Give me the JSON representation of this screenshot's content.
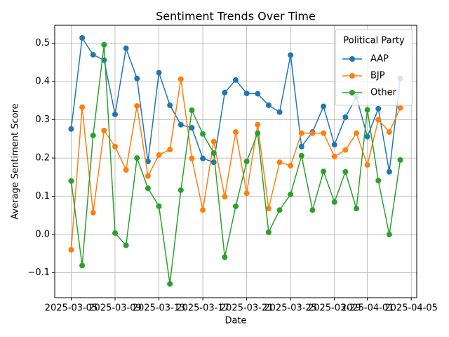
{
  "chart_data": {
    "type": "line",
    "title": "Sentiment Trends Over Time",
    "xlabel": "Date",
    "ylabel": "Average Sentiment Score",
    "x": [
      "2025-03-05",
      "2025-03-06",
      "2025-03-07",
      "2025-03-08",
      "2025-03-09",
      "2025-03-10",
      "2025-03-11",
      "2025-03-12",
      "2025-03-13",
      "2025-03-14",
      "2025-03-15",
      "2025-03-16",
      "2025-03-17",
      "2025-03-18",
      "2025-03-19",
      "2025-03-20",
      "2025-03-21",
      "2025-03-22",
      "2025-03-23",
      "2025-03-24",
      "2025-03-25",
      "2025-03-26",
      "2025-03-27",
      "2025-03-28",
      "2025-03-29",
      "2025-03-30",
      "2025-03-31",
      "2025-04-01",
      "2025-04-02",
      "2025-04-03",
      "2025-04-04"
    ],
    "series": [
      {
        "name": "AAP",
        "color": "#1f77b4",
        "values": [
          0.276,
          0.514,
          0.47,
          0.456,
          0.314,
          0.487,
          0.408,
          0.191,
          0.423,
          0.338,
          0.287,
          0.279,
          0.199,
          0.189,
          0.371,
          0.404,
          0.369,
          0.368,
          0.338,
          0.32,
          0.469,
          0.23,
          0.268,
          0.335,
          0.235,
          0.307,
          0.36,
          0.256,
          0.329,
          0.164,
          0.408
        ]
      },
      {
        "name": "BJP",
        "color": "#ff7f0e",
        "values": [
          -0.04,
          0.333,
          0.057,
          0.272,
          0.23,
          0.169,
          0.336,
          0.153,
          0.208,
          0.222,
          0.406,
          0.199,
          0.064,
          0.243,
          0.099,
          0.268,
          0.108,
          0.287,
          0.068,
          0.189,
          0.18,
          0.265,
          0.265,
          0.265,
          0.204,
          0.221,
          0.265,
          0.182,
          0.3,
          0.268,
          0.331
        ]
      },
      {
        "name": "Other",
        "color": "#2ca02c",
        "values": [
          0.14,
          -0.081,
          0.259,
          0.496,
          0.004,
          -0.028,
          0.2,
          0.121,
          0.074,
          -0.129,
          0.116,
          0.325,
          0.263,
          0.213,
          -0.059,
          0.074,
          0.191,
          0.265,
          0.006,
          0.064,
          0.105,
          0.206,
          0.064,
          0.165,
          0.085,
          0.164,
          0.068,
          0.326,
          0.141,
          0.0,
          0.195
        ]
      }
    ],
    "xlim": [
      "2025-03-03T12:00",
      "2025-04-05T12:00"
    ],
    "xticks": [
      "2025-03-05",
      "2025-03-09",
      "2025-03-13",
      "2025-03-17",
      "2025-03-21",
      "2025-03-25",
      "2025-03-29",
      "2025-04-01",
      "2025-04-05"
    ],
    "ylim": [
      -0.165,
      0.547
    ],
    "yticks": [
      {
        "value": -0.1,
        "label": "−0.1"
      },
      {
        "value": 0,
        "label": "0.0"
      },
      0.1,
      0.2,
      0.3,
      0.4,
      0.5
    ],
    "grid": true,
    "legend_title": "Political Party",
    "legend_position": "upper right"
  }
}
